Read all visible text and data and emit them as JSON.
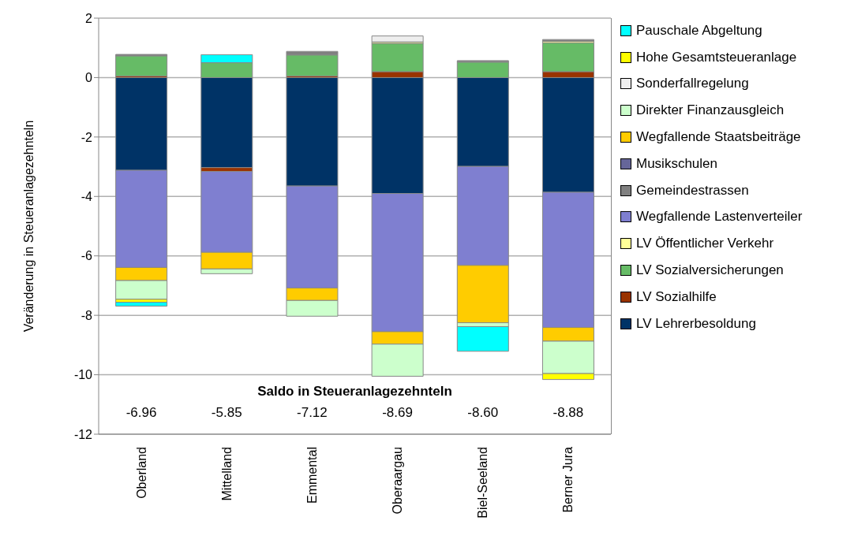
{
  "chart_data": {
    "type": "bar",
    "stacked": true,
    "ylabel": "Veränderung in Steueranlagezehnteln",
    "categories": [
      "Oberland",
      "Mittelland",
      "Emmental",
      "Oberaargau",
      "Biel-Seeland",
      "Berner Jura"
    ],
    "series": [
      {
        "name": "LV Lehrerbesoldung",
        "color": "#003366",
        "values": [
          -3.12,
          -3.03,
          -3.65,
          -3.9,
          -2.99,
          -3.86
        ]
      },
      {
        "name": "LV Sozialhilfe",
        "color": "#993300",
        "values": [
          0.05,
          -0.13,
          0.05,
          0.2,
          null,
          0.2
        ]
      },
      {
        "name": "LV Sozialversicherungen",
        "color": "#66bb66",
        "values": [
          0.68,
          0.5,
          0.71,
          0.95,
          0.52,
          0.97
        ]
      },
      {
        "name": "LV Öffentlicher Verkehr",
        "color": "#ffff99",
        "values": [
          null,
          null,
          null,
          0.05,
          null,
          0.05
        ]
      },
      {
        "name": "Wegfallende Lastenverteiler",
        "color": "#7f7fd0",
        "values": [
          -3.27,
          -2.72,
          -3.43,
          -4.65,
          -3.33,
          -4.55
        ]
      },
      {
        "name": "Gemeindestrassen",
        "color": "#808080",
        "values": [
          0.05,
          null,
          0.12,
          null,
          0.05,
          0.06
        ]
      },
      {
        "name": "Musikschulen",
        "color": "#666699",
        "values": [
          null,
          null,
          null,
          null,
          null,
          null
        ]
      },
      {
        "name": "Wegfallende Staatsbeiträge",
        "color": "#ffcc00",
        "values": [
          -0.44,
          -0.56,
          -0.42,
          -0.42,
          -1.93,
          -0.46
        ]
      },
      {
        "name": "Direkter Finanzausgleich",
        "color": "#ccffcc",
        "values": [
          -0.63,
          -0.16,
          -0.53,
          -1.08,
          -0.13,
          -1.09
        ]
      },
      {
        "name": "Sonderfallregelung",
        "color": "#eeeeee",
        "values": [
          null,
          null,
          null,
          0.2,
          null,
          null
        ]
      },
      {
        "name": "Hohe Gesamtsteueranlage",
        "color": "#ffff00",
        "values": [
          -0.1,
          null,
          null,
          null,
          null,
          -0.2
        ]
      },
      {
        "name": "Pauschale Abgeltung",
        "color": "#00ffff",
        "values": [
          -0.13,
          0.27,
          null,
          null,
          -0.83,
          null
        ]
      }
    ],
    "ylim": [
      -12,
      2
    ],
    "yticks": [
      -12,
      -10,
      -8,
      -6,
      -4,
      -2,
      0,
      2
    ],
    "grid": "y",
    "legend": "right",
    "annotations": [
      "Saldo in Steueranlagezehnteln",
      "-6.96",
      "-5.85",
      "-7.12",
      "-8.69",
      "-8.60",
      "-8.88"
    ]
  }
}
